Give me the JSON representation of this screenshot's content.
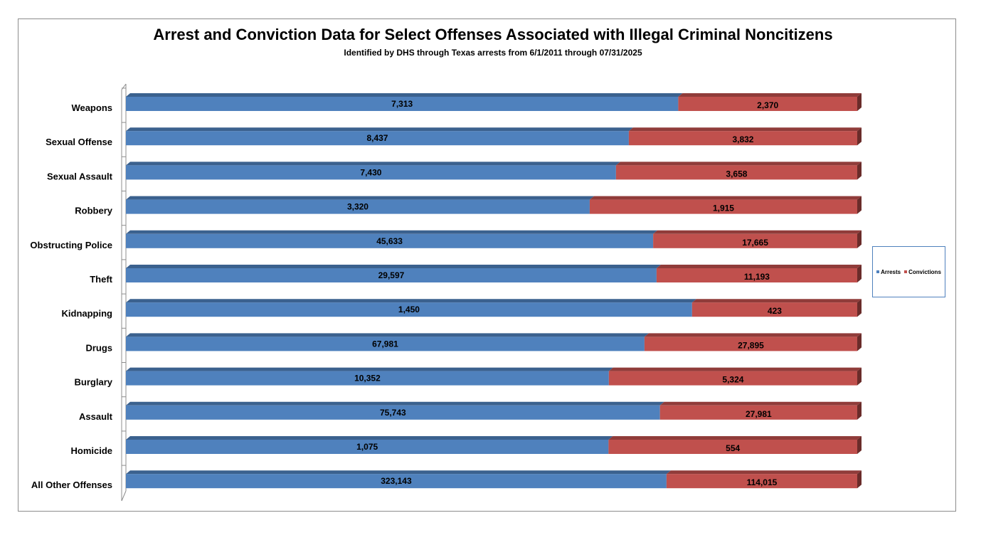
{
  "chart_data": {
    "type": "bar",
    "orientation": "horizontal",
    "stacked": "percent",
    "title": "Arrest and Conviction Data for Select Offenses Associated with Illegal Criminal Noncitizens",
    "subtitle": "Identified by DHS through Texas arrests from 6/1/2011 through 07/31/2025",
    "xlabel": "",
    "ylabel": "",
    "legend_position": "right",
    "grid": false,
    "categories": [
      "Weapons",
      "Sexual Offense",
      "Sexual Assault",
      "Robbery",
      "Obstructing Police",
      "Theft",
      "Kidnapping",
      "Drugs",
      "Burglary",
      "Assault",
      "Homicide",
      "All Other Offenses"
    ],
    "series": [
      {
        "name": "Arrests",
        "color": "#4f81bd",
        "values": [
          7313,
          8437,
          7430,
          3320,
          45633,
          29597,
          1450,
          67981,
          10352,
          75743,
          1075,
          323143
        ],
        "labels": [
          "7,313",
          "8,437",
          "7,430",
          "3,320",
          "45,633",
          "29,597",
          "1,450",
          "67,981",
          "10,352",
          "75,743",
          "1,075",
          "323,143"
        ]
      },
      {
        "name": "Convictions",
        "color": "#c0504d",
        "values": [
          2370,
          3832,
          3658,
          1915,
          17665,
          11193,
          423,
          27895,
          5324,
          27981,
          554,
          114015
        ],
        "labels": [
          "2,370",
          "3,832",
          "3,658",
          "1,915",
          "17,665",
          "11,193",
          "423",
          "27,895",
          "5,324",
          "27,981",
          "554",
          "114,015"
        ]
      }
    ]
  }
}
